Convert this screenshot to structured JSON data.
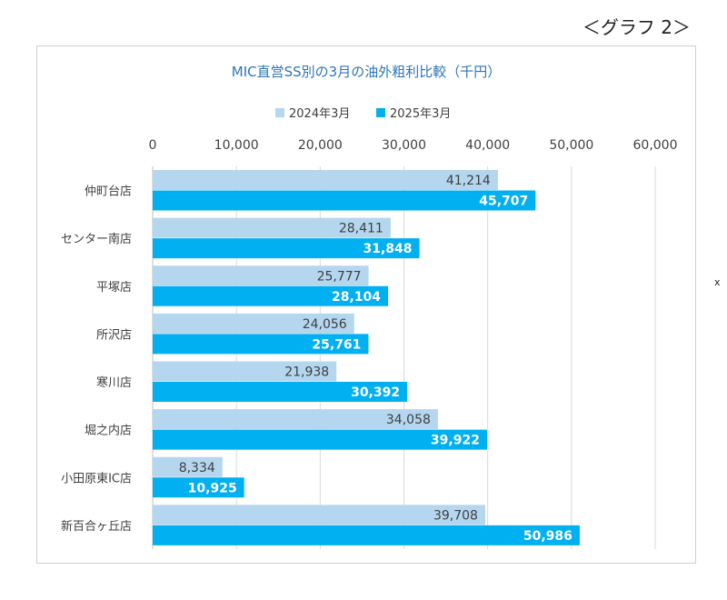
{
  "page": {
    "graph_label": "＜グラフ 2＞",
    "side_mark": "x"
  },
  "colors": {
    "series_2024": "#B4D6EE",
    "series_2025": "#00B0F0",
    "gridline": "#D9D9D9",
    "title": "#2E75B6"
  },
  "chart_data": {
    "type": "bar",
    "orientation": "horizontal",
    "title": "MIC直営SS別の3月の油外粗利比較（千円）",
    "xlabel": "",
    "ylabel": "",
    "xlim": [
      0,
      60000
    ],
    "x_ticks": [
      "0",
      "10,000",
      "20,000",
      "30,000",
      "40,000",
      "50,000",
      "60,000"
    ],
    "grid": true,
    "legend_position": "top",
    "categories": [
      "仲町台店",
      "センター南店",
      "平塚店",
      "所沢店",
      "寒川店",
      "堀之内店",
      "小田原東IC店",
      "新百合ヶ丘店"
    ],
    "series": [
      {
        "name": "2024年3月",
        "values": [
          41214,
          28411,
          25777,
          24056,
          21938,
          34058,
          8334,
          39708
        ],
        "labels": [
          "41,214",
          "28,411",
          "25,777",
          "24,056",
          "21,938",
          "34,058",
          "8,334",
          "39,708"
        ]
      },
      {
        "name": "2025年3月",
        "values": [
          45707,
          31848,
          28104,
          25761,
          30392,
          39922,
          10925,
          50986
        ],
        "labels": [
          "45,707",
          "31,848",
          "28,104",
          "25,761",
          "30,392",
          "39,922",
          "10,925",
          "50,986"
        ]
      }
    ]
  }
}
